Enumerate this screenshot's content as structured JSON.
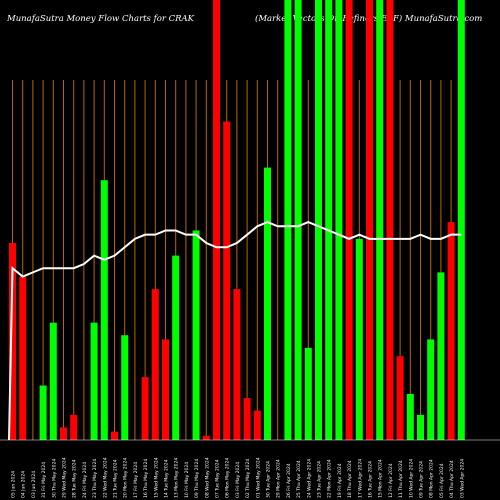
{
  "header": {
    "title_left": "MunafaSutra  Money Flow  Charts for CRAK",
    "title_right": "(Market Vectors Oil Refiners ETF) MunafaSutra.com"
  },
  "colors": {
    "background": "#000000",
    "up": "#00ff00",
    "down": "#ff0000",
    "line": "#ffffff",
    "grid": "#b8660b"
  },
  "chart_data": {
    "type": "bar",
    "title": "MunafaSutra  Money Flow  Charts for CRAK (Market Vectors Oil Refiners ETF) MunafaSutra.com",
    "categories": [
      "05 Jun 2024",
      "04 Jun 2024",
      "03 Jun 2024",
      "31 Fri May 2024",
      "30 Thu May 2024",
      "29 Wed May 2024",
      "28 Tue May 2024",
      "24 Fri May 2024",
      "23 Thu May 2024",
      "22 Wed May 2024",
      "21 Tue May 2024",
      "20 Mon May 2024",
      "17 Fri May 2024",
      "16 Thu May 2024",
      "15 Wed May 2024",
      "14 Tue May 2024",
      "13 Mon May 2024",
      "10 Fri May 2024",
      "09 Thu May 2024",
      "08 Wed May 2024",
      "07 Tue May 2024",
      "06 Mon May 2024",
      "03 Fri May 2024",
      "02 Thu May 2024",
      "01 Wed May 2024",
      "30 Tue Apr 2024",
      "29 Mon Apr 2024",
      "26 Fri Apr 2024",
      "25 Thu Apr 2024",
      "24 Wed Apr 2024",
      "23 Tue Apr 2024",
      "22 Mon Apr 2024",
      "19 Fri Apr 2024",
      "18 Thu Apr 2024",
      "17 Wed Apr 2024",
      "16 Tue Apr 2024",
      "15 Mon Apr 2024",
      "12 Fri Apr 2024",
      "11 Thu Apr 2024",
      "10 Wed Apr 2024",
      "09 Tue Apr 2024",
      "08 Mon Apr 2024",
      "05 Fri Apr 2024",
      "04 Thu Apr 2024",
      "03 Wed Apr 2024"
    ],
    "values": [
      47,
      39,
      0,
      13,
      28,
      3,
      6,
      0,
      28,
      62,
      2,
      25,
      0,
      15,
      36,
      24,
      44,
      0,
      50,
      1,
      105,
      76,
      36,
      10,
      7,
      65,
      0,
      105,
      105,
      22,
      105,
      105,
      105,
      105,
      48,
      105,
      105,
      105,
      20,
      11,
      6,
      24,
      40,
      52,
      105
    ],
    "bar_colors": [
      "red",
      "red",
      "green",
      "green",
      "green",
      "red",
      "red",
      "green",
      "green",
      "green",
      "red",
      "green",
      "red",
      "red",
      "red",
      "red",
      "green",
      "red",
      "green",
      "red",
      "red",
      "red",
      "red",
      "red",
      "red",
      "green",
      "green",
      "green",
      "green",
      "green",
      "green",
      "green",
      "green",
      "red",
      "green",
      "red",
      "green",
      "red",
      "red",
      "green",
      "green",
      "green",
      "green",
      "red",
      "green"
    ],
    "line_values": [
      41,
      39,
      40,
      41,
      41,
      41,
      41,
      42,
      44,
      43,
      44,
      46,
      48,
      49,
      49,
      50,
      50,
      49,
      49,
      47,
      46,
      46,
      47,
      49,
      51,
      52,
      51,
      51,
      51,
      52,
      51,
      50,
      49,
      48,
      49,
      48,
      48,
      48,
      48,
      48,
      49,
      48,
      48,
      49,
      49
    ],
    "ylim": [
      0,
      105
    ],
    "grid": true,
    "xlabel": "",
    "ylabel": ""
  }
}
